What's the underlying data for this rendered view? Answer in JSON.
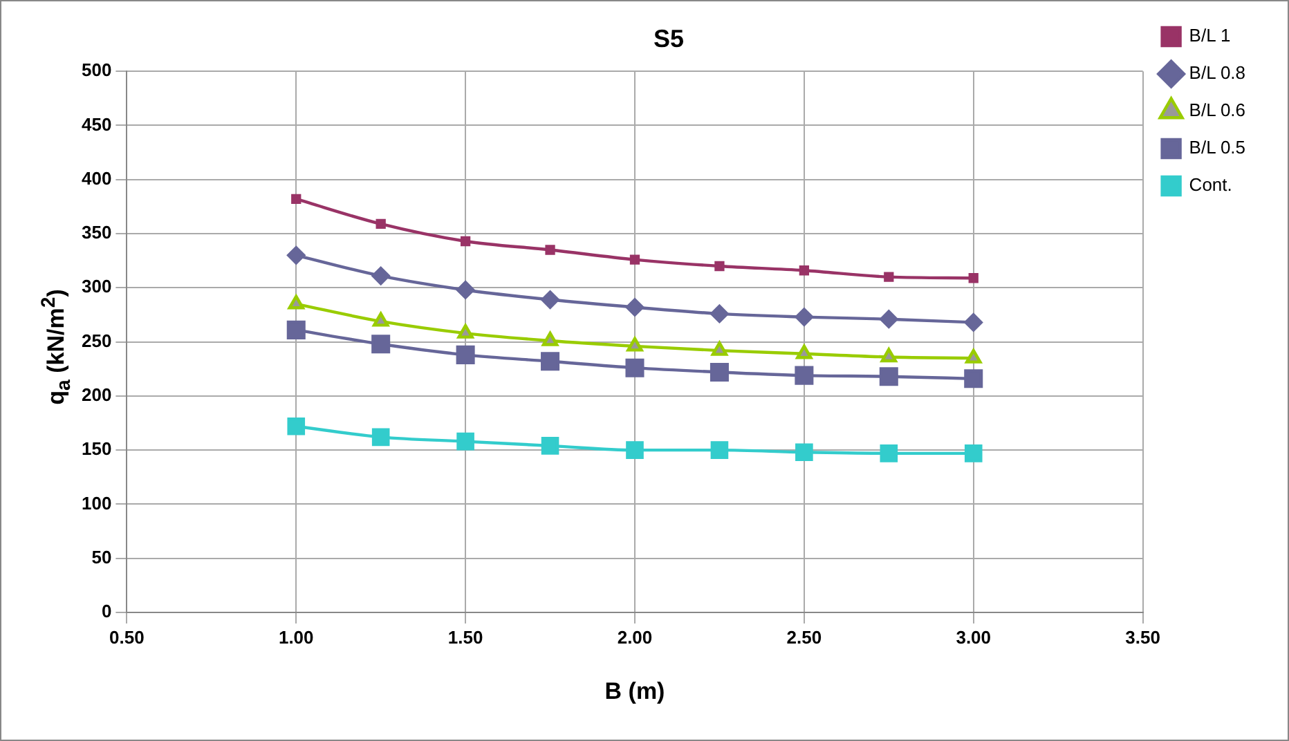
{
  "chart_data": {
    "type": "line",
    "title": "S5",
    "xlabel": "B (m)",
    "ylabel": "q$_{a}$ (kN/m$^{2}$)",
    "x": [
      1.0,
      1.25,
      1.5,
      1.75,
      2.0,
      2.25,
      2.5,
      2.75,
      3.0
    ],
    "xlim": [
      0.5,
      3.5
    ],
    "xticks": [
      {
        "value": 0.5,
        "label": "0.50"
      },
      {
        "value": 1,
        "label": "1.00"
      },
      {
        "value": 1.5,
        "label": "1.50"
      },
      {
        "value": 2,
        "label": "2.00"
      },
      {
        "value": 2.5,
        "label": "2.50"
      },
      {
        "value": 3,
        "label": "3.00"
      },
      {
        "value": 3.5,
        "label": "3.50"
      }
    ],
    "ylim": [
      0,
      500
    ],
    "yticks": [
      0,
      50,
      100,
      150,
      200,
      250,
      300,
      350,
      400,
      450,
      500
    ],
    "grid": true,
    "legend": "top right",
    "series": [
      {
        "name": "B/L 1",
        "color": "#993366",
        "marker": "square",
        "values": [
          382,
          359,
          343,
          335,
          326,
          320,
          316,
          310,
          309
        ]
      },
      {
        "name": "B/L 0.8",
        "color": "#666699",
        "marker": "diamond",
        "values": [
          330,
          311,
          298,
          289,
          282,
          276,
          273,
          271,
          268
        ]
      },
      {
        "name": "B/L 0.6",
        "color": "#99cc00",
        "marker": "triangle",
        "values": [
          285,
          269,
          258,
          251,
          246,
          242,
          239,
          236,
          235
        ]
      },
      {
        "name": "B/L 0.5",
        "color": "#666699",
        "marker": "square",
        "values": [
          261,
          248,
          238,
          232,
          226,
          222,
          219,
          218,
          216
        ]
      },
      {
        "name": "Cont.",
        "color": "#33cccc",
        "marker": "square",
        "values": [
          172,
          162,
          158,
          154,
          150,
          150,
          148,
          147,
          147
        ]
      }
    ]
  }
}
